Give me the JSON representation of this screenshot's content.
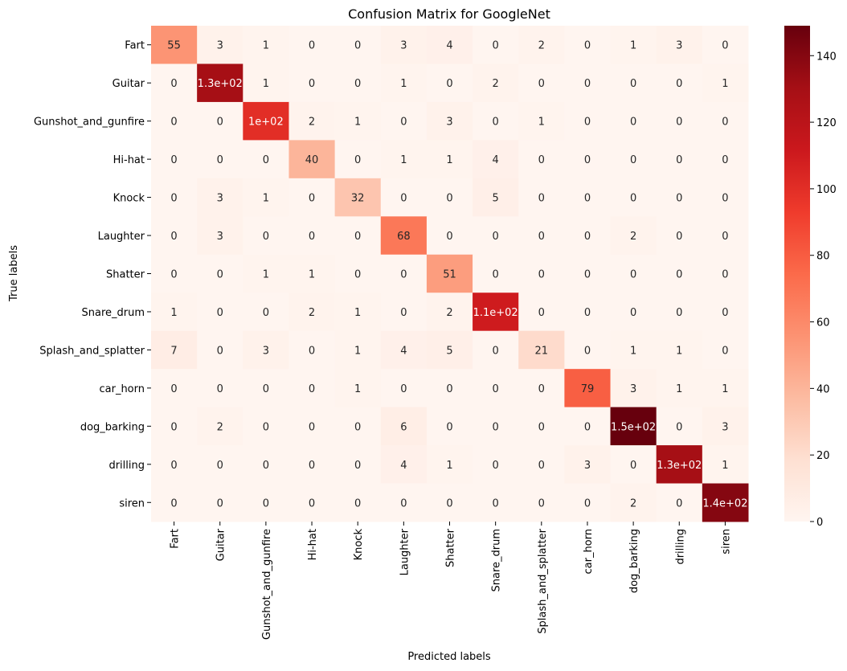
{
  "chart_data": {
    "type": "heatmap",
    "title": "Confusion Matrix for GoogleNet",
    "xlabel": "Predicted labels",
    "ylabel": "True labels",
    "categories": [
      "Fart",
      "Guitar",
      "Gunshot_and_gunfire",
      "Hi-hat",
      "Knock",
      "Laughter",
      "Shatter",
      "Snare_drum",
      "Splash_and_splatter",
      "car_horn",
      "dog_barking",
      "drilling",
      "siren"
    ],
    "values": [
      [
        55,
        3,
        1,
        0,
        0,
        3,
        4,
        0,
        2,
        0,
        1,
        3,
        0
      ],
      [
        0,
        130,
        1,
        0,
        0,
        1,
        0,
        2,
        0,
        0,
        0,
        0,
        1
      ],
      [
        0,
        0,
        100,
        2,
        1,
        0,
        3,
        0,
        1,
        0,
        0,
        0,
        0
      ],
      [
        0,
        0,
        0,
        40,
        0,
        1,
        1,
        4,
        0,
        0,
        0,
        0,
        0
      ],
      [
        0,
        3,
        1,
        0,
        32,
        0,
        0,
        5,
        0,
        0,
        0,
        0,
        0
      ],
      [
        0,
        3,
        0,
        0,
        0,
        68,
        0,
        0,
        0,
        0,
        2,
        0,
        0
      ],
      [
        0,
        0,
        1,
        1,
        0,
        0,
        51,
        0,
        0,
        0,
        0,
        0,
        0
      ],
      [
        1,
        0,
        0,
        2,
        1,
        0,
        2,
        110,
        0,
        0,
        0,
        0,
        0
      ],
      [
        7,
        0,
        3,
        0,
        1,
        4,
        5,
        0,
        21,
        0,
        1,
        1,
        0
      ],
      [
        0,
        0,
        0,
        0,
        1,
        0,
        0,
        0,
        0,
        79,
        3,
        1,
        1
      ],
      [
        0,
        2,
        0,
        0,
        0,
        6,
        0,
        0,
        0,
        0,
        149,
        0,
        3
      ],
      [
        0,
        0,
        0,
        0,
        0,
        4,
        1,
        0,
        0,
        3,
        0,
        130,
        1
      ],
      [
        0,
        0,
        0,
        0,
        0,
        0,
        0,
        0,
        0,
        0,
        2,
        0,
        140
      ]
    ],
    "cell_labels": [
      [
        "55",
        "3",
        "1",
        "0",
        "0",
        "3",
        "4",
        "0",
        "2",
        "0",
        "1",
        "3",
        "0"
      ],
      [
        "0",
        "1.3e+02",
        "1",
        "0",
        "0",
        "1",
        "0",
        "2",
        "0",
        "0",
        "0",
        "0",
        "1"
      ],
      [
        "0",
        "0",
        "1e+02",
        "2",
        "1",
        "0",
        "3",
        "0",
        "1",
        "0",
        "0",
        "0",
        "0"
      ],
      [
        "0",
        "0",
        "0",
        "40",
        "0",
        "1",
        "1",
        "4",
        "0",
        "0",
        "0",
        "0",
        "0"
      ],
      [
        "0",
        "3",
        "1",
        "0",
        "32",
        "0",
        "0",
        "5",
        "0",
        "0",
        "0",
        "0",
        "0"
      ],
      [
        "0",
        "3",
        "0",
        "0",
        "0",
        "68",
        "0",
        "0",
        "0",
        "0",
        "2",
        "0",
        "0"
      ],
      [
        "0",
        "0",
        "1",
        "1",
        "0",
        "0",
        "51",
        "0",
        "0",
        "0",
        "0",
        "0",
        "0"
      ],
      [
        "1",
        "0",
        "0",
        "2",
        "1",
        "0",
        "2",
        "1.1e+02",
        "0",
        "0",
        "0",
        "0",
        "0"
      ],
      [
        "7",
        "0",
        "3",
        "0",
        "1",
        "4",
        "5",
        "0",
        "21",
        "0",
        "1",
        "1",
        "0"
      ],
      [
        "0",
        "0",
        "0",
        "0",
        "1",
        "0",
        "0",
        "0",
        "0",
        "79",
        "3",
        "1",
        "1"
      ],
      [
        "0",
        "2",
        "0",
        "0",
        "0",
        "6",
        "0",
        "0",
        "0",
        "0",
        "1.5e+02",
        "0",
        "3"
      ],
      [
        "0",
        "0",
        "0",
        "0",
        "0",
        "4",
        "1",
        "0",
        "0",
        "3",
        "0",
        "1.3e+02",
        "1"
      ],
      [
        "0",
        "0",
        "0",
        "0",
        "0",
        "0",
        "0",
        "0",
        "0",
        "0",
        "2",
        "0",
        "1.4e+02"
      ]
    ],
    "colorbar": {
      "colormap": "Reds",
      "range": [
        0,
        149
      ],
      "ticks": [
        0,
        20,
        40,
        60,
        80,
        100,
        120,
        140
      ]
    },
    "grid": false,
    "legend": "colorbar-right"
  }
}
